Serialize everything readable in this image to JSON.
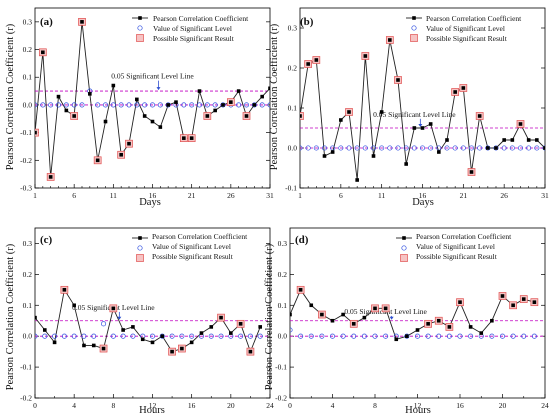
{
  "chart_data": [
    {
      "panel_label": "(a)",
      "type": "line",
      "xlabel": "Days",
      "ylabel": "Pearson Correlation Coefficient (r)",
      "xlim": [
        1,
        31
      ],
      "ylim": [
        -0.3,
        0.35
      ],
      "x_ticks": [
        1,
        6,
        11,
        16,
        21,
        26,
        31
      ],
      "x_minor_ticks": [
        2,
        3,
        4,
        5,
        7,
        8,
        9,
        10,
        12,
        13,
        14,
        15,
        17,
        18,
        19,
        20,
        22,
        23,
        24,
        25,
        27,
        28,
        29,
        30
      ],
      "y_ticks": [
        -0.3,
        -0.2,
        -0.1,
        0.0,
        0.1,
        0.2,
        0.3
      ],
      "y_tick_labels": [
        "-0.3",
        "-0.2",
        "-0.1",
        "0.0",
        "0.1",
        "0.2",
        "0.3"
      ],
      "significance_level": 0.05,
      "significance_label": "0.05 Significant Level Line",
      "significance_label_pos": [
        16,
        0.095
      ],
      "legend": {
        "placement": "top-right",
        "entries": [
          "Pearson Correlation Coefficient",
          "Value of Significant Level",
          "Possible Significant Result"
        ]
      },
      "x": [
        1,
        2,
        3,
        4,
        5,
        6,
        7,
        8,
        9,
        10,
        11,
        12,
        13,
        14,
        15,
        16,
        17,
        18,
        19,
        20,
        21,
        22,
        23,
        24,
        25,
        26,
        27,
        28,
        29,
        30,
        31
      ],
      "series": [
        {
          "name": "Pearson Correlation Coefficient",
          "values": [
            -0.1,
            0.19,
            -0.26,
            0.03,
            -0.02,
            -0.04,
            0.3,
            0.04,
            -0.2,
            -0.06,
            0.07,
            -0.18,
            -0.14,
            0.02,
            -0.04,
            -0.06,
            -0.08,
            0.0,
            0.01,
            -0.12,
            -0.12,
            0.05,
            -0.04,
            -0.02,
            0.0,
            0.01,
            0.05,
            -0.04,
            0.0,
            0.03,
            0.06
          ]
        },
        {
          "name": "Value of Significant Level",
          "values": [
            0,
            0,
            0,
            0,
            0,
            0,
            0,
            0.05,
            0,
            0,
            0,
            0,
            0,
            0,
            0,
            0,
            0,
            0,
            0,
            0,
            0,
            0,
            0,
            0,
            0,
            0,
            0,
            0,
            0,
            0,
            0
          ]
        }
      ],
      "possible_significant_x": [
        1,
        2,
        3,
        6,
        7,
        9,
        12,
        13,
        20,
        21,
        23,
        26,
        28
      ]
    },
    {
      "panel_label": "(b)",
      "type": "line",
      "xlabel": "Days",
      "ylabel": "Pearson Correlation Coefficient (r)",
      "xlim": [
        1,
        31
      ],
      "ylim": [
        -0.1,
        0.35
      ],
      "x_ticks": [
        1,
        6,
        11,
        16,
        21,
        26,
        31
      ],
      "x_minor_ticks": [
        2,
        3,
        4,
        5,
        7,
        8,
        9,
        10,
        12,
        13,
        14,
        15,
        17,
        18,
        19,
        20,
        22,
        23,
        24,
        25,
        27,
        28,
        29,
        30
      ],
      "y_ticks": [
        -0.1,
        0.0,
        0.1,
        0.2,
        0.3
      ],
      "y_tick_labels": [
        "-0.1",
        "0.0",
        "0.1",
        "0.2",
        "0.3"
      ],
      "significance_level": 0.05,
      "significance_label": "0.05 Significant Level Line",
      "significance_label_pos": [
        15,
        0.078
      ],
      "legend": {
        "placement": "top-right",
        "entries": [
          "Pearson Correlation Coefficient",
          "Value of Significant Level",
          "Possible Significant Result"
        ]
      },
      "x": [
        1,
        2,
        3,
        4,
        5,
        6,
        7,
        8,
        9,
        10,
        11,
        12,
        13,
        14,
        15,
        16,
        17,
        18,
        19,
        20,
        21,
        22,
        23,
        24,
        25,
        26,
        27,
        28,
        29,
        30,
        31
      ],
      "series": [
        {
          "name": "Pearson Correlation Coefficient",
          "values": [
            0.08,
            0.21,
            0.22,
            -0.02,
            -0.01,
            0.07,
            0.09,
            -0.08,
            0.23,
            -0.02,
            0.09,
            0.27,
            0.17,
            -0.04,
            0.05,
            0.05,
            0.06,
            -0.01,
            0.02,
            0.14,
            0.15,
            -0.06,
            0.08,
            0.0,
            0.0,
            0.02,
            0.02,
            0.06,
            0.02,
            0.02,
            0.0
          ]
        },
        {
          "name": "Value of Significant Level",
          "values": [
            0,
            0,
            0,
            0,
            0,
            0,
            0,
            0,
            0,
            0,
            0,
            0,
            0,
            0,
            0,
            0,
            0,
            0,
            0,
            0,
            0,
            0,
            0,
            0,
            0,
            0,
            0,
            0,
            0,
            0,
            0
          ]
        }
      ],
      "possible_significant_x": [
        1,
        2,
        3,
        7,
        9,
        12,
        13,
        20,
        21,
        22,
        23,
        28
      ]
    },
    {
      "panel_label": "(c)",
      "type": "line",
      "xlabel": "Hours",
      "ylabel": "Pearson Correlation Coefficient (r)",
      "xlim": [
        0,
        24
      ],
      "ylim": [
        -0.2,
        0.35
      ],
      "x_ticks": [
        0,
        4,
        8,
        12,
        16,
        20,
        24
      ],
      "x_minor_ticks": [
        2,
        6,
        10,
        14,
        18,
        22
      ],
      "y_ticks": [
        -0.2,
        -0.1,
        0.0,
        0.1,
        0.2,
        0.3
      ],
      "y_tick_labels": [
        "-0.2",
        "-0.1",
        "0.0",
        "0.1",
        "0.2",
        "0.3"
      ],
      "significance_level": 0.05,
      "significance_label": "0.05 Significant Level Line",
      "significance_label_pos": [
        8,
        0.085
      ],
      "legend": {
        "placement": "top-right",
        "entries": [
          "Pearson Correlation Coefficient",
          "Value of Significant Level",
          "Possible Significant Result"
        ]
      },
      "x": [
        0,
        1,
        2,
        3,
        4,
        5,
        6,
        7,
        8,
        9,
        10,
        11,
        12,
        13,
        14,
        15,
        16,
        17,
        18,
        19,
        20,
        21,
        22,
        23
      ],
      "series": [
        {
          "name": "Pearson Correlation Coefficient",
          "values": [
            0.06,
            0.02,
            -0.02,
            0.15,
            0.1,
            -0.03,
            -0.03,
            -0.04,
            0.09,
            0.02,
            0.03,
            -0.01,
            -0.02,
            0.0,
            -0.05,
            -0.04,
            -0.02,
            0.01,
            0.03,
            0.06,
            0.01,
            0.04,
            -0.05,
            0.03
          ]
        },
        {
          "name": "Value of Significant Level",
          "values": [
            0,
            0,
            0,
            0,
            0,
            0,
            0,
            0.04,
            0,
            0,
            0,
            0,
            0,
            0,
            0,
            0,
            0,
            0,
            0,
            0,
            0,
            0,
            0,
            0
          ]
        }
      ],
      "possible_significant_x": [
        3,
        7,
        8,
        14,
        15,
        19,
        21,
        22
      ]
    },
    {
      "panel_label": "(d)",
      "type": "line",
      "xlabel": "Hours",
      "ylabel": "Pearson Correlation Coefficient (r)",
      "xlim": [
        0,
        24
      ],
      "ylim": [
        -0.2,
        0.35
      ],
      "x_ticks": [
        0,
        4,
        8,
        12,
        16,
        20,
        24
      ],
      "x_minor_ticks": [
        2,
        6,
        10,
        14,
        18,
        22
      ],
      "y_ticks": [
        -0.2,
        -0.1,
        0.0,
        0.1,
        0.2,
        0.3
      ],
      "y_tick_labels": [
        "-0.2",
        "-0.1",
        "0.0",
        "0.1",
        "0.2",
        "0.3"
      ],
      "significance_level": 0.05,
      "significance_label": "0.05 Significant Level Line",
      "significance_label_pos": [
        9,
        0.072
      ],
      "legend": {
        "placement": "top-right",
        "entries": [
          "Pearson Correlation Coefficient",
          "Value of Significant Level",
          "Possible Significant Result"
        ]
      },
      "x": [
        0,
        1,
        2,
        3,
        4,
        5,
        6,
        7,
        8,
        9,
        10,
        11,
        12,
        13,
        14,
        15,
        16,
        17,
        18,
        19,
        20,
        21,
        22,
        23
      ],
      "series": [
        {
          "name": "Pearson Correlation Coefficient",
          "values": [
            0.07,
            0.15,
            0.1,
            0.07,
            0.05,
            0.07,
            0.04,
            0.06,
            0.09,
            0.09,
            -0.01,
            0.0,
            0.02,
            0.04,
            0.05,
            0.03,
            0.11,
            0.03,
            0.01,
            0.05,
            0.13,
            0.1,
            0.12,
            0.11
          ]
        },
        {
          "name": "Value of Significant Level",
          "values": [
            0.02,
            0,
            0,
            0,
            0,
            0,
            0,
            0,
            0,
            0,
            0,
            0,
            0,
            0,
            0,
            0,
            0,
            0,
            0,
            0,
            0,
            0,
            0,
            0
          ]
        }
      ],
      "possible_significant_x": [
        1,
        3,
        6,
        8,
        9,
        13,
        14,
        15,
        16,
        20,
        21,
        22,
        23
      ]
    }
  ]
}
